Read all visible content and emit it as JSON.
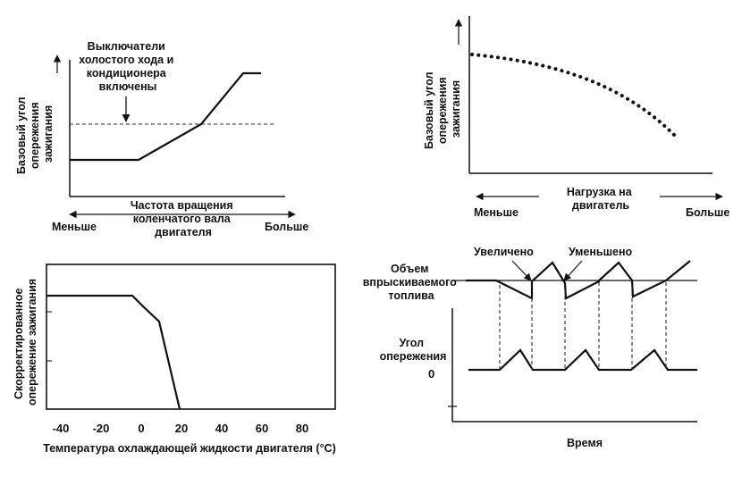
{
  "panel1": {
    "caption": [
      "Выключатели",
      "холостого хода и",
      "кондиционера",
      "включены"
    ],
    "y_label": [
      "Базовый угол",
      "опережения",
      "зажигания"
    ],
    "x_label": [
      "Частота вращения",
      "коленчатого вала",
      "двигателя"
    ],
    "left_label": "Меньше",
    "right_label": "Больше"
  },
  "panel2": {
    "y_label": [
      "Базовый угол",
      "опережения",
      "зажигания"
    ],
    "x_label": [
      "Нагрузка на",
      "двигатель"
    ],
    "left_label": "Меньше",
    "right_label": "Больше"
  },
  "panel3": {
    "y_label": [
      "Скорректированное",
      "опережение зажигания"
    ],
    "x_label": "Температура охлаждающей жидкости двигателя (°C)",
    "x_ticks": [
      "-40",
      "-20",
      "0",
      "20",
      "40",
      "60",
      "80"
    ]
  },
  "panel4": {
    "increased": "Увеличено",
    "decreased": "Уменьшено",
    "fuel_label": [
      "Объем",
      "впрыскиваемого",
      "топлива"
    ],
    "angle_label": [
      "Угол",
      "опережения"
    ],
    "zero": "0",
    "time_label": "Время"
  }
}
